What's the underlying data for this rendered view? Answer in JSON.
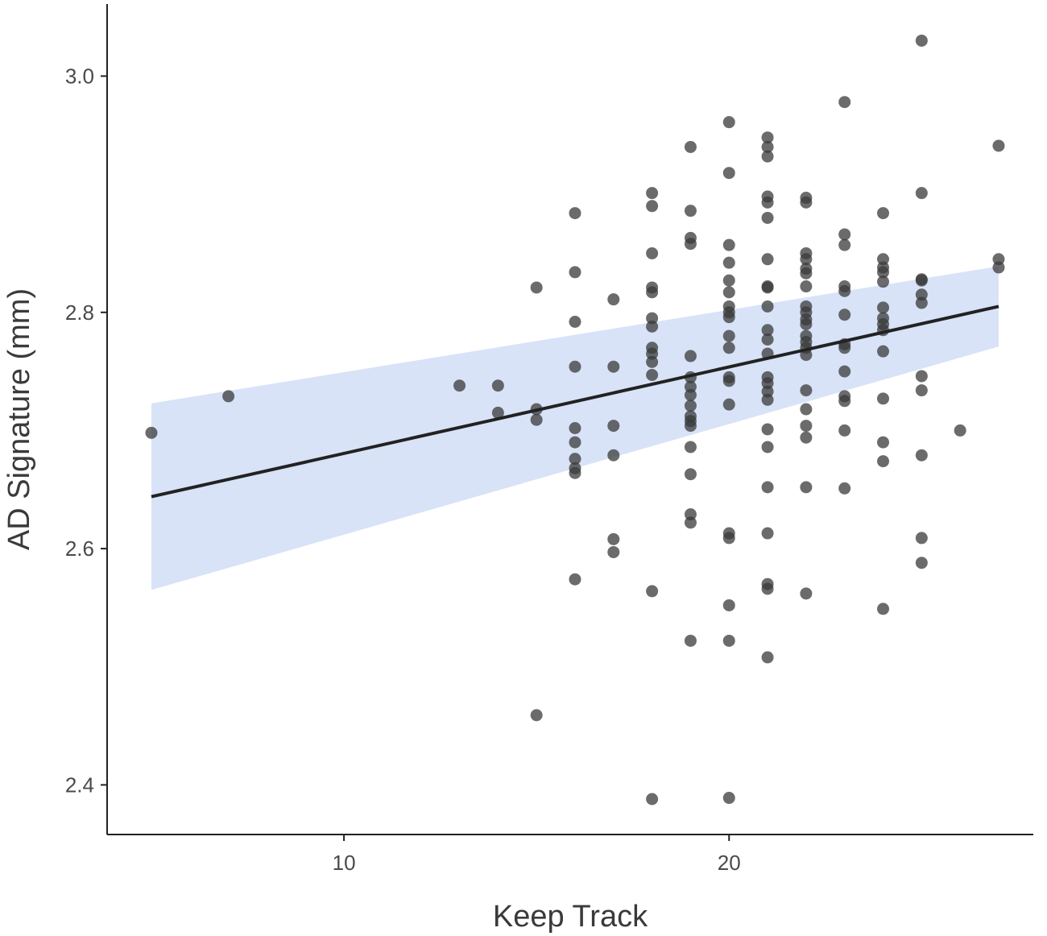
{
  "chart_data": {
    "type": "scatter",
    "title": "",
    "xlabel": "Keep Track",
    "ylabel": "AD Signature (mm)",
    "xlim": [
      3.85,
      27.9
    ],
    "ylim": [
      2.358,
      3.061
    ],
    "x_ticks": [
      10,
      20
    ],
    "y_ticks": [
      2.4,
      2.6,
      2.8,
      3.0
    ],
    "x_tick_labels": [
      "10",
      "20"
    ],
    "y_tick_labels": [
      "2.4",
      "2.6",
      "2.8",
      "3.0"
    ],
    "grid": false,
    "legend": "none",
    "colors": {
      "points": "#3a3a3a",
      "fit": "#222222",
      "band": "#c8d7f5"
    },
    "fit": {
      "x": [
        5,
        27
      ],
      "y": [
        2.644,
        2.805
      ],
      "ci_lower": [
        2.565,
        2.771
      ],
      "ci_upper": [
        2.723,
        2.839
      ]
    },
    "points": [
      [
        5,
        2.698
      ],
      [
        7,
        2.729
      ],
      [
        13,
        2.738
      ],
      [
        14,
        2.738
      ],
      [
        14,
        2.715
      ],
      [
        15,
        2.821
      ],
      [
        15,
        2.718
      ],
      [
        15,
        2.709
      ],
      [
        15,
        2.459
      ],
      [
        16,
        2.884
      ],
      [
        16,
        2.834
      ],
      [
        16,
        2.792
      ],
      [
        16,
        2.754
      ],
      [
        16,
        2.702
      ],
      [
        16,
        2.69
      ],
      [
        16,
        2.676
      ],
      [
        16,
        2.668
      ],
      [
        16,
        2.664
      ],
      [
        16,
        2.574
      ],
      [
        17,
        2.811
      ],
      [
        17,
        2.754
      ],
      [
        17,
        2.704
      ],
      [
        17,
        2.679
      ],
      [
        17,
        2.608
      ],
      [
        17,
        2.597
      ],
      [
        18,
        2.901
      ],
      [
        18,
        2.89
      ],
      [
        18,
        2.85
      ],
      [
        18,
        2.821
      ],
      [
        18,
        2.817
      ],
      [
        18,
        2.795
      ],
      [
        18,
        2.788
      ],
      [
        18,
        2.77
      ],
      [
        18,
        2.765
      ],
      [
        18,
        2.758
      ],
      [
        18,
        2.747
      ],
      [
        18,
        2.564
      ],
      [
        18,
        2.388
      ],
      [
        19,
        2.94
      ],
      [
        19,
        2.886
      ],
      [
        19,
        2.863
      ],
      [
        19,
        2.858
      ],
      [
        19,
        2.763
      ],
      [
        19,
        2.745
      ],
      [
        19,
        2.737
      ],
      [
        19,
        2.73
      ],
      [
        19,
        2.721
      ],
      [
        19,
        2.712
      ],
      [
        19,
        2.708
      ],
      [
        19,
        2.704
      ],
      [
        19,
        2.686
      ],
      [
        19,
        2.663
      ],
      [
        19,
        2.629
      ],
      [
        19,
        2.622
      ],
      [
        19,
        2.522
      ],
      [
        20,
        2.961
      ],
      [
        20,
        2.918
      ],
      [
        20,
        2.857
      ],
      [
        20,
        2.842
      ],
      [
        20,
        2.827
      ],
      [
        20,
        2.817
      ],
      [
        20,
        2.805
      ],
      [
        20,
        2.8
      ],
      [
        20,
        2.796
      ],
      [
        20,
        2.78
      ],
      [
        20,
        2.77
      ],
      [
        20,
        2.745
      ],
      [
        20,
        2.742
      ],
      [
        20,
        2.722
      ],
      [
        20,
        2.613
      ],
      [
        20,
        2.609
      ],
      [
        20,
        2.552
      ],
      [
        20,
        2.522
      ],
      [
        20,
        2.389
      ],
      [
        21,
        2.948
      ],
      [
        21,
        2.94
      ],
      [
        21,
        2.932
      ],
      [
        21,
        2.898
      ],
      [
        21,
        2.893
      ],
      [
        21,
        2.88
      ],
      [
        21,
        2.845
      ],
      [
        21,
        2.822
      ],
      [
        21,
        2.821
      ],
      [
        21,
        2.805
      ],
      [
        21,
        2.785
      ],
      [
        21,
        2.777
      ],
      [
        21,
        2.765
      ],
      [
        21,
        2.745
      ],
      [
        21,
        2.74
      ],
      [
        21,
        2.733
      ],
      [
        21,
        2.726
      ],
      [
        21,
        2.701
      ],
      [
        21,
        2.686
      ],
      [
        21,
        2.652
      ],
      [
        21,
        2.613
      ],
      [
        21,
        2.57
      ],
      [
        21,
        2.566
      ],
      [
        21,
        2.508
      ],
      [
        22,
        2.897
      ],
      [
        22,
        2.893
      ],
      [
        22,
        2.85
      ],
      [
        22,
        2.845
      ],
      [
        22,
        2.837
      ],
      [
        22,
        2.833
      ],
      [
        22,
        2.822
      ],
      [
        22,
        2.805
      ],
      [
        22,
        2.8
      ],
      [
        22,
        2.794
      ],
      [
        22,
        2.79
      ],
      [
        22,
        2.78
      ],
      [
        22,
        2.775
      ],
      [
        22,
        2.77
      ],
      [
        22,
        2.764
      ],
      [
        22,
        2.734
      ],
      [
        22,
        2.718
      ],
      [
        22,
        2.704
      ],
      [
        22,
        2.694
      ],
      [
        22,
        2.652
      ],
      [
        22,
        2.562
      ],
      [
        23,
        2.978
      ],
      [
        23,
        2.866
      ],
      [
        23,
        2.857
      ],
      [
        23,
        2.822
      ],
      [
        23,
        2.818
      ],
      [
        23,
        2.798
      ],
      [
        23,
        2.773
      ],
      [
        23,
        2.77
      ],
      [
        23,
        2.75
      ],
      [
        23,
        2.729
      ],
      [
        23,
        2.725
      ],
      [
        23,
        2.7
      ],
      [
        23,
        2.651
      ],
      [
        24,
        2.884
      ],
      [
        24,
        2.845
      ],
      [
        24,
        2.838
      ],
      [
        24,
        2.834
      ],
      [
        24,
        2.826
      ],
      [
        24,
        2.804
      ],
      [
        24,
        2.795
      ],
      [
        24,
        2.79
      ],
      [
        24,
        2.785
      ],
      [
        24,
        2.767
      ],
      [
        24,
        2.727
      ],
      [
        24,
        2.69
      ],
      [
        24,
        2.674
      ],
      [
        24,
        2.549
      ],
      [
        25,
        3.03
      ],
      [
        25,
        2.901
      ],
      [
        25,
        2.828
      ],
      [
        25,
        2.827
      ],
      [
        25,
        2.815
      ],
      [
        25,
        2.808
      ],
      [
        25,
        2.746
      ],
      [
        25,
        2.734
      ],
      [
        25,
        2.679
      ],
      [
        25,
        2.609
      ],
      [
        25,
        2.588
      ],
      [
        26,
        2.7
      ],
      [
        27,
        2.941
      ],
      [
        27,
        2.845
      ],
      [
        27,
        2.838
      ]
    ]
  }
}
